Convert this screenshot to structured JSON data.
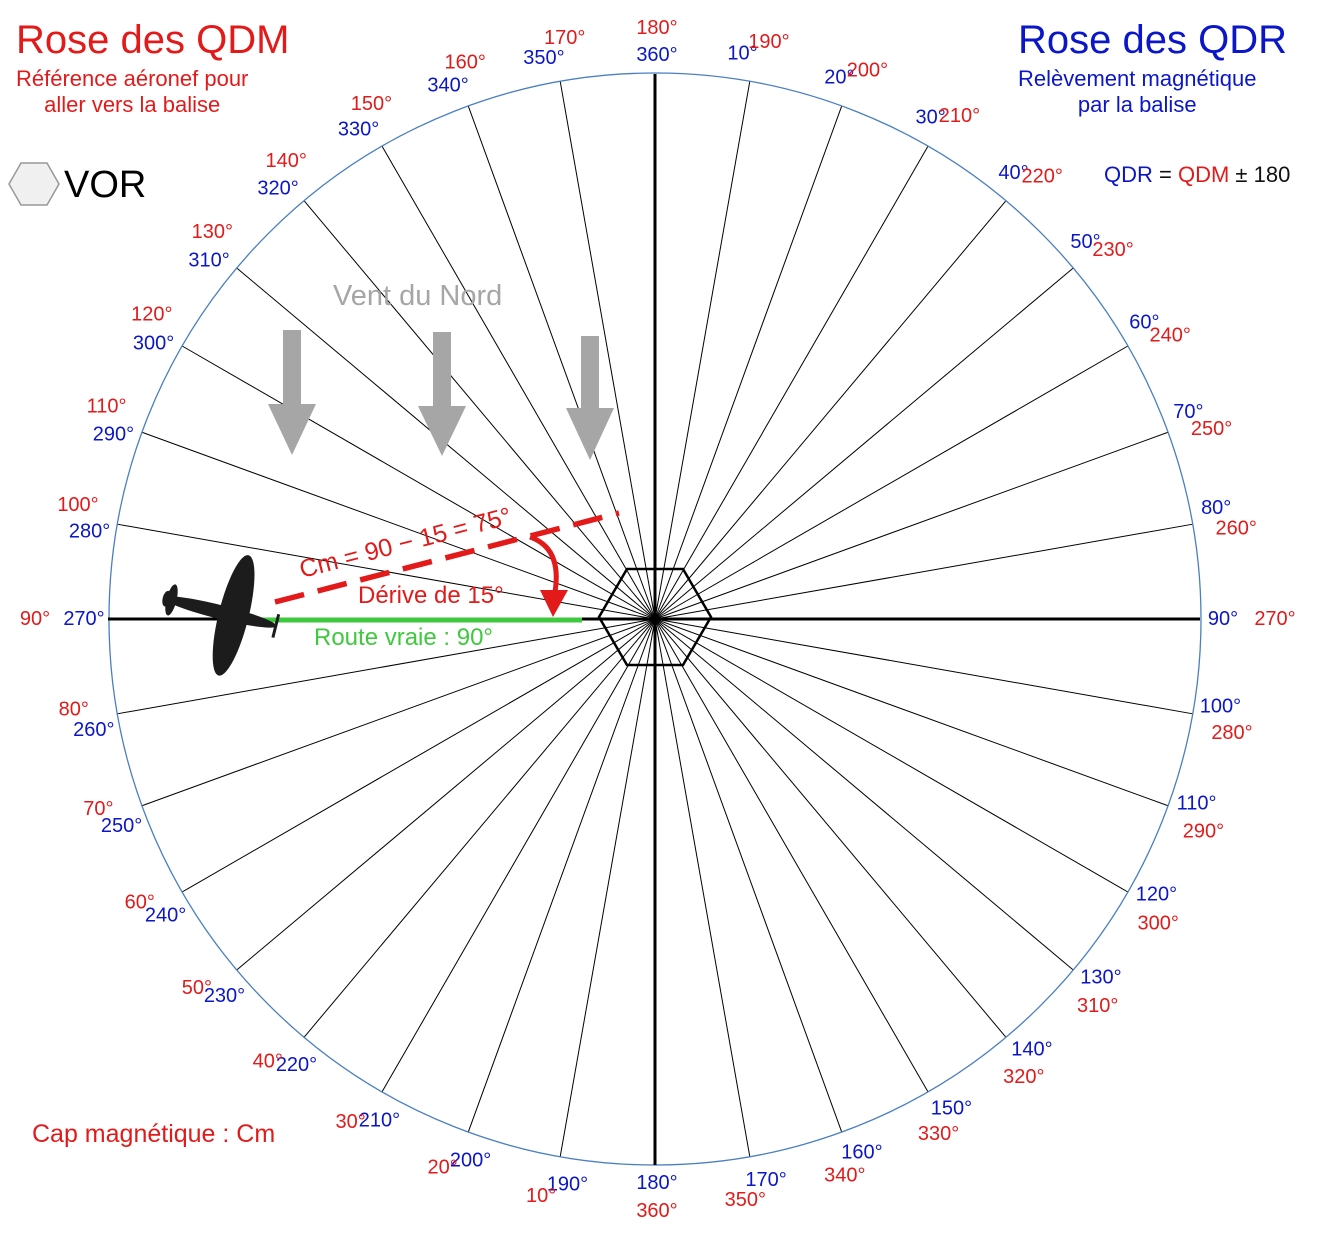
{
  "header_left": {
    "title": "Rose des QDM",
    "subtitle_line1": "Référence aéronef pour",
    "subtitle_line2": "aller vers la balise"
  },
  "header_right": {
    "title": "Rose des QDR",
    "subtitle_line1": "Relèvement magnétique",
    "subtitle_line2": "par la balise"
  },
  "formula": {
    "qdr": "QDR",
    "eq": " = ",
    "qdm": "QDM",
    "rest": " ± 180"
  },
  "legend": {
    "vor_label": "VOR"
  },
  "bottom_note": "Cap magnétique : Cm",
  "diagram": {
    "wind_label": "Vent du Nord",
    "heading_label": "Cm = 90 − 15 = 75°",
    "drift_label": "Dérive de 15°",
    "route_label": "Route vraie : 90°"
  },
  "rose": {
    "step_degrees": 10,
    "outer_labels": [
      "180°",
      "190°",
      "200°",
      "210°",
      "220°",
      "230°",
      "240°",
      "250°",
      "260°",
      "270°",
      "280°",
      "290°",
      "300°",
      "310°",
      "320°",
      "330°",
      "340°",
      "350°",
      "360°",
      "10°",
      "20°",
      "30°",
      "40°",
      "50°",
      "60°",
      "70°",
      "80°",
      "90°",
      "100°",
      "110°",
      "120°",
      "130°",
      "140°",
      "150°",
      "160°",
      "170°"
    ],
    "inner_labels": [
      "360°",
      "10°",
      "20°",
      "30°",
      "40°",
      "50°",
      "60°",
      "70°",
      "80°",
      "90°",
      "100°",
      "110°",
      "120°",
      "130°",
      "140°",
      "150°",
      "160°",
      "170°",
      "180°",
      "190°",
      "200°",
      "210°",
      "220°",
      "230°",
      "240°",
      "250°",
      "260°",
      "270°",
      "280°",
      "290°",
      "300°",
      "310°",
      "320°",
      "330°",
      "340°",
      "350°"
    ],
    "bottom_outer_label": "360°",
    "bottom_inner_label": "180°"
  },
  "colors": {
    "qdm": "#e31a1a",
    "qdr": "#0a16c8",
    "route": "#3fc93f",
    "wind": "#a6a6a6",
    "circle": "#4a7fc1"
  },
  "icons": {
    "aircraft": "airplane-icon",
    "beacon": "hexagon-icon",
    "wind": "arrow-down-icon"
  }
}
